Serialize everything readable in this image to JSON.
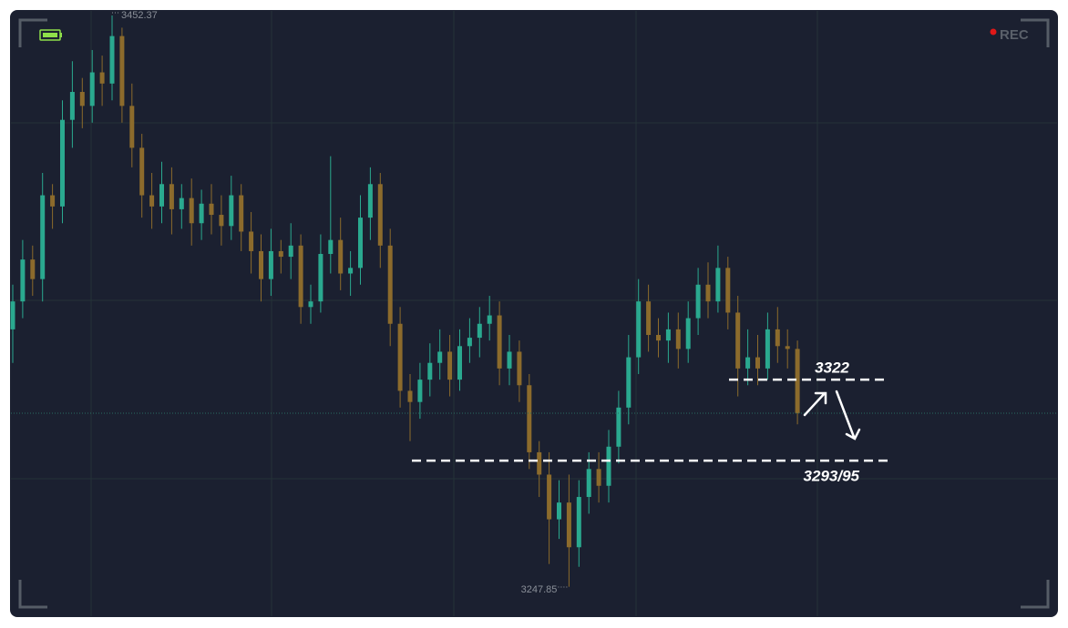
{
  "chart_data": {
    "type": "candlestick",
    "ylim": [
      3237,
      3454
    ],
    "up_color": "#2aa98f",
    "down_color": "#8c6b2c",
    "open": [
      3340,
      3350,
      3365,
      3358,
      3388,
      3384,
      3415,
      3425,
      3420,
      3432,
      3428,
      3445,
      3420,
      3405,
      3388,
      3384,
      3392,
      3383,
      3387,
      3378,
      3385,
      3381,
      3377,
      3388,
      3375,
      3368,
      3358,
      3368,
      3366,
      3370,
      3348,
      3350,
      3367,
      3372,
      3360,
      3362,
      3380,
      3392,
      3370,
      3342,
      3318,
      3314,
      3322,
      3328,
      3332,
      3322,
      3334,
      3337,
      3342,
      3345,
      3326,
      3332,
      3320,
      3296,
      3288,
      3272,
      3278,
      3262,
      3280,
      3290,
      3284,
      3298,
      3312,
      3330,
      3350,
      3338,
      3336,
      3340,
      3333,
      3344,
      3356,
      3350,
      3362,
      3346,
      3326,
      3330,
      3326,
      3340,
      3334,
      3333
    ],
    "high": [
      3356,
      3372,
      3370,
      3396,
      3392,
      3422,
      3436,
      3430,
      3440,
      3438,
      3452.37,
      3448,
      3428,
      3410,
      3396,
      3400,
      3398,
      3392,
      3394,
      3390,
      3392,
      3388,
      3395,
      3392,
      3382,
      3374,
      3376,
      3372,
      3378,
      3374,
      3356,
      3374,
      3402,
      3380,
      3368,
      3388,
      3398,
      3396,
      3376,
      3348,
      3324,
      3328,
      3335,
      3340,
      3338,
      3340,
      3344,
      3348,
      3352,
      3350,
      3338,
      3336,
      3324,
      3300,
      3296,
      3286,
      3288,
      3286,
      3296,
      3296,
      3304,
      3318,
      3338,
      3358,
      3356,
      3344,
      3346,
      3346,
      3350,
      3362,
      3364,
      3370,
      3366,
      3352,
      3340,
      3338,
      3346,
      3348,
      3340,
      3336
    ],
    "low": [
      3328,
      3344,
      3352,
      3350,
      3376,
      3378,
      3405,
      3412,
      3414,
      3420,
      3422,
      3414,
      3398,
      3380,
      3376,
      3378,
      3374,
      3376,
      3370,
      3372,
      3374,
      3370,
      3372,
      3368,
      3360,
      3350,
      3352,
      3360,
      3358,
      3342,
      3342,
      3346,
      3360,
      3354,
      3352,
      3356,
      3372,
      3362,
      3334,
      3312,
      3300,
      3308,
      3316,
      3322,
      3316,
      3318,
      3328,
      3330,
      3336,
      3320,
      3320,
      3314,
      3290,
      3280,
      3256,
      3265,
      3247.85,
      3255,
      3274,
      3278,
      3278,
      3292,
      3306,
      3324,
      3332,
      3330,
      3328,
      3326,
      3328,
      3338,
      3344,
      3346,
      3340,
      3316,
      3320,
      3320,
      3322,
      3328,
      3326,
      3306
    ],
    "close": [
      3350,
      3365,
      3358,
      3388,
      3384,
      3415,
      3425,
      3420,
      3432,
      3428,
      3445,
      3420,
      3405,
      3388,
      3384,
      3392,
      3383,
      3387,
      3378,
      3385,
      3381,
      3377,
      3388,
      3375,
      3368,
      3358,
      3368,
      3366,
      3370,
      3348,
      3350,
      3367,
      3372,
      3360,
      3362,
      3380,
      3392,
      3370,
      3342,
      3318,
      3314,
      3322,
      3328,
      3332,
      3322,
      3334,
      3337,
      3342,
      3345,
      3326,
      3332,
      3320,
      3296,
      3288,
      3272,
      3278,
      3262,
      3280,
      3290,
      3284,
      3298,
      3312,
      3330,
      3350,
      3338,
      3336,
      3340,
      3333,
      3344,
      3356,
      3350,
      3362,
      3346,
      3326,
      3330,
      3326,
      3340,
      3334,
      3333,
      3310
    ],
    "levels": [
      {
        "value": 3322,
        "label": "3322"
      },
      {
        "value": 3293,
        "label": "3293/95"
      }
    ],
    "rec_label": "REC"
  }
}
